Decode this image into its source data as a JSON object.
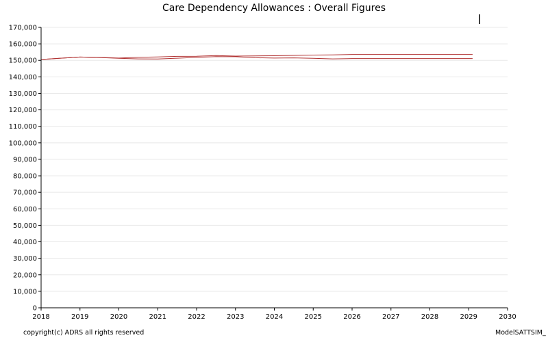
{
  "colors": {
    "series_line": "#b03030",
    "axis": "#000000",
    "gridline": "#e8e8e8"
  },
  "footer": {
    "copyright": "copyright(c) ADRS all rights reserved",
    "model": "ModelSATTSIM_"
  },
  "chart_data": {
    "type": "line",
    "title": "Care Dependency Allowances : Overall Figures",
    "xlabel": "",
    "ylabel": "",
    "xlim": [
      2018,
      2030
    ],
    "ylim": [
      0,
      170000
    ],
    "x_ticks": [
      "2018",
      "2019",
      "2020",
      "2021",
      "2022",
      "2023",
      "2024",
      "2025",
      "2026",
      "2027",
      "2028",
      "2029",
      "2030"
    ],
    "y_ticks": [
      "0",
      "10,000",
      "20,000",
      "30,000",
      "40,000",
      "50,000",
      "60,000",
      "70,000",
      "80,000",
      "90,000",
      "100,000",
      "110,000",
      "120,000",
      "130,000",
      "140,000",
      "150,000",
      "160,000",
      "170,000"
    ],
    "grid": "horizontal",
    "legend": "none",
    "series": [
      {
        "x": [
          2018.0,
          2018.5,
          2019.0,
          2019.5,
          2020.0,
          2020.5,
          2021.0,
          2021.5,
          2022.0,
          2022.5,
          2023.0,
          2023.5,
          2024.0,
          2024.5,
          2025.0,
          2025.5,
          2026.0,
          2026.5,
          2027.0,
          2027.5,
          2028.0,
          2028.5,
          2029.0,
          2029.1
        ],
        "values": [
          150500,
          151300,
          152000,
          151800,
          151400,
          151900,
          152100,
          152400,
          152500,
          152900,
          152600,
          152700,
          152800,
          153000,
          153200,
          153300,
          153600,
          153600,
          153600,
          153600,
          153600,
          153600,
          153600,
          153600
        ]
      },
      {
        "x": [
          2018.0,
          2018.5,
          2019.0,
          2019.5,
          2020.0,
          2020.5,
          2021.0,
          2021.5,
          2022.0,
          2022.5,
          2023.0,
          2023.5,
          2024.0,
          2024.5,
          2025.0,
          2025.5,
          2026.0,
          2026.5,
          2027.0,
          2027.5,
          2028.0,
          2028.5,
          2029.0,
          2029.1
        ],
        "values": [
          150500,
          151300,
          152000,
          151700,
          151200,
          150900,
          150800,
          151300,
          151800,
          152300,
          152200,
          151600,
          151400,
          151500,
          151200,
          150900,
          151100,
          151100,
          151100,
          151100,
          151100,
          151100,
          151100,
          151100
        ]
      }
    ]
  }
}
